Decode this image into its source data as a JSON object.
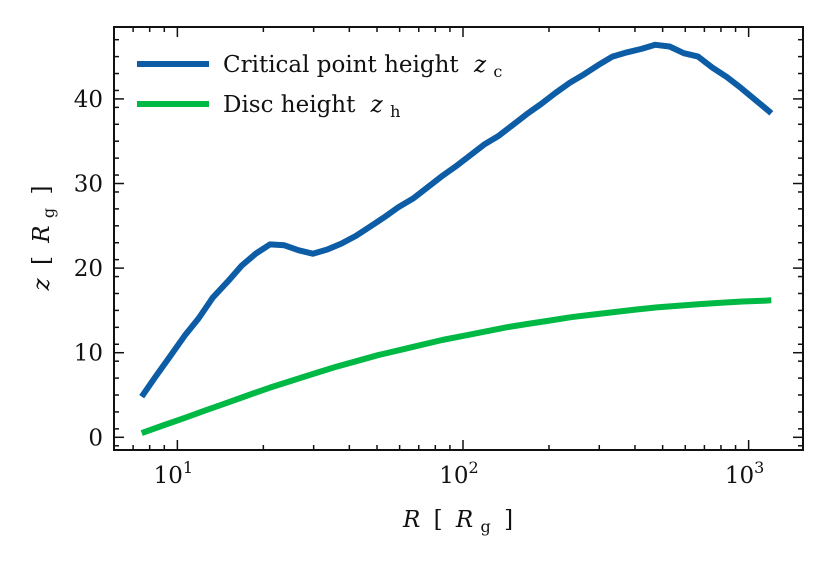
{
  "chart_data": {
    "type": "line",
    "xscale": "log",
    "xlim": [
      6,
      1550
    ],
    "ylim": [
      -1.5,
      48.5
    ],
    "xlabel_parts": {
      "var": "R",
      "open": "[",
      "unit": "R",
      "unit_sub": "g",
      "close": "]"
    },
    "ylabel_parts": {
      "var": "z",
      "open": "[",
      "unit": "R",
      "unit_sub": "g",
      "close": "]"
    },
    "x_ticks": [
      {
        "value": 10,
        "base": "10",
        "exp": "1"
      },
      {
        "value": 100,
        "base": "10",
        "exp": "2"
      },
      {
        "value": 1000,
        "base": "10",
        "exp": "3"
      }
    ],
    "y_ticks": [
      {
        "value": 0,
        "label": "0"
      },
      {
        "value": 10,
        "label": "10"
      },
      {
        "value": 20,
        "label": "20"
      },
      {
        "value": 30,
        "label": "30"
      },
      {
        "value": 40,
        "label": "40"
      }
    ],
    "legend_position": "top-left",
    "series": [
      {
        "name": "Critical point height",
        "symbol": "z",
        "symbol_sub": "c",
        "color": "#0C5DA5",
        "x": [
          7.5,
          8.4,
          9.4,
          10.6,
          11.9,
          13.3,
          15.0,
          16.8,
          18.8,
          21.1,
          23.7,
          26.6,
          29.8,
          33.5,
          37.5,
          42.1,
          47.2,
          53.0,
          59.4,
          66.7,
          74.8,
          83.9,
          94.1,
          105.6,
          118.5,
          132.9,
          149.1,
          167.3,
          187.7,
          210.6,
          236.3,
          265.1,
          297.4,
          333.6,
          374.3,
          419.9,
          471.1,
          528.6,
          593.0,
          665.3,
          746.4,
          837.4,
          939.5,
          1054.0,
          1182.5,
          1200.0
        ],
        "y": [
          4.8,
          7.2,
          9.5,
          12.0,
          14.1,
          16.5,
          18.4,
          20.3,
          21.7,
          22.8,
          22.7,
          22.1,
          21.7,
          22.2,
          22.9,
          23.8,
          24.9,
          26.0,
          27.2,
          28.2,
          29.5,
          30.8,
          32.0,
          33.3,
          34.6,
          35.6,
          36.9,
          38.2,
          39.4,
          40.7,
          41.9,
          42.9,
          44.0,
          45.0,
          45.5,
          45.9,
          46.4,
          46.2,
          45.4,
          45.0,
          43.7,
          42.6,
          41.3,
          39.9,
          38.5,
          38.3
        ]
      },
      {
        "name": "Disc height",
        "symbol": "z",
        "symbol_sub": "h",
        "color": "#00B945",
        "x": [
          7.5,
          8.9,
          10.6,
          12.6,
          15.0,
          17.8,
          21.2,
          25.2,
          29.9,
          35.6,
          42.3,
          50.3,
          59.8,
          71.1,
          84.5,
          100.5,
          119.5,
          142.0,
          168.8,
          200.7,
          238.6,
          283.7,
          337.3,
          401.0,
          476.7,
          566.8,
          673.8,
          801.1,
          952.4,
          1132.2,
          1200.0
        ],
        "y": [
          0.5,
          1.4,
          2.3,
          3.2,
          4.1,
          5.0,
          5.9,
          6.7,
          7.5,
          8.3,
          9.0,
          9.7,
          10.3,
          10.9,
          11.5,
          12.0,
          12.5,
          13.0,
          13.4,
          13.8,
          14.2,
          14.5,
          14.8,
          15.1,
          15.35,
          15.55,
          15.75,
          15.9,
          16.05,
          16.15,
          16.2
        ]
      }
    ]
  }
}
